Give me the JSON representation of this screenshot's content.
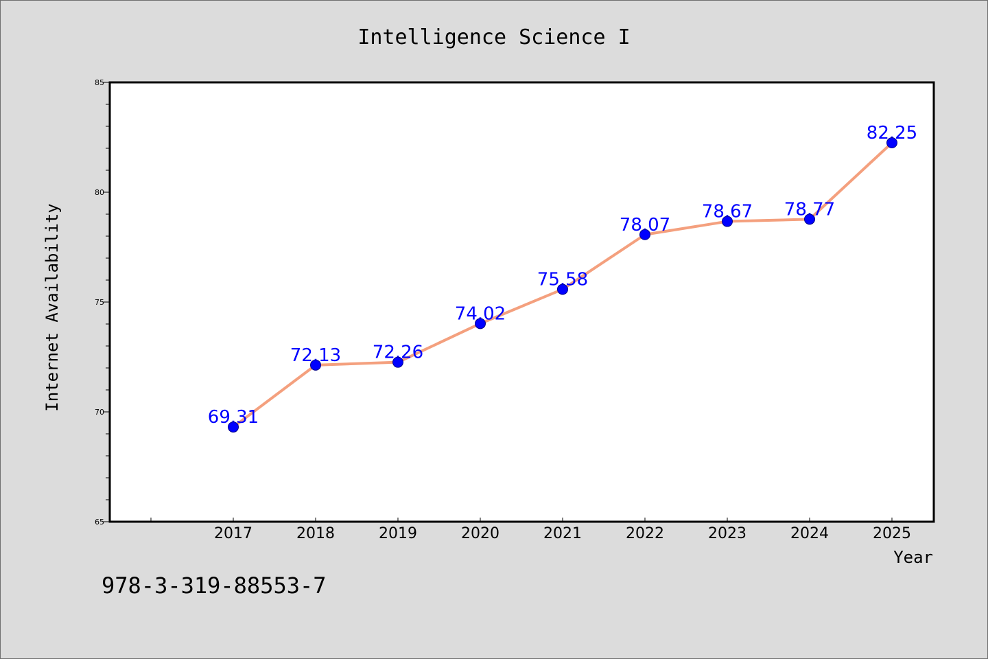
{
  "chart_data": {
    "type": "line",
    "title": "Intelligence Science I",
    "xlabel": "Year",
    "ylabel": "Internet Availability",
    "categories": [
      "2017",
      "2018",
      "2019",
      "2020",
      "2021",
      "2022",
      "2023",
      "2024",
      "2025"
    ],
    "values": [
      69.31,
      72.13,
      72.26,
      74.02,
      75.58,
      78.07,
      78.67,
      78.77,
      82.25
    ],
    "data_labels": [
      "69.31",
      "72.13",
      "72.26",
      "74.02",
      "75.58",
      "78.07",
      "78.67",
      "78.77",
      "82.25"
    ],
    "ylim": [
      65,
      85
    ],
    "y_ticks": [
      65,
      70,
      75,
      80,
      85
    ],
    "y_tick_labels": [
      "65",
      "70",
      "75",
      "80",
      "85"
    ],
    "grid": false,
    "colors": {
      "line": "#f4a07e",
      "marker": "#0000ff",
      "marker_edge": "#00008b",
      "label": "#0000ff",
      "plot_background": "#ffffff",
      "figure_background": "#dcdcdc"
    }
  },
  "annotation": {
    "isbn": "978-3-319-88553-7"
  }
}
